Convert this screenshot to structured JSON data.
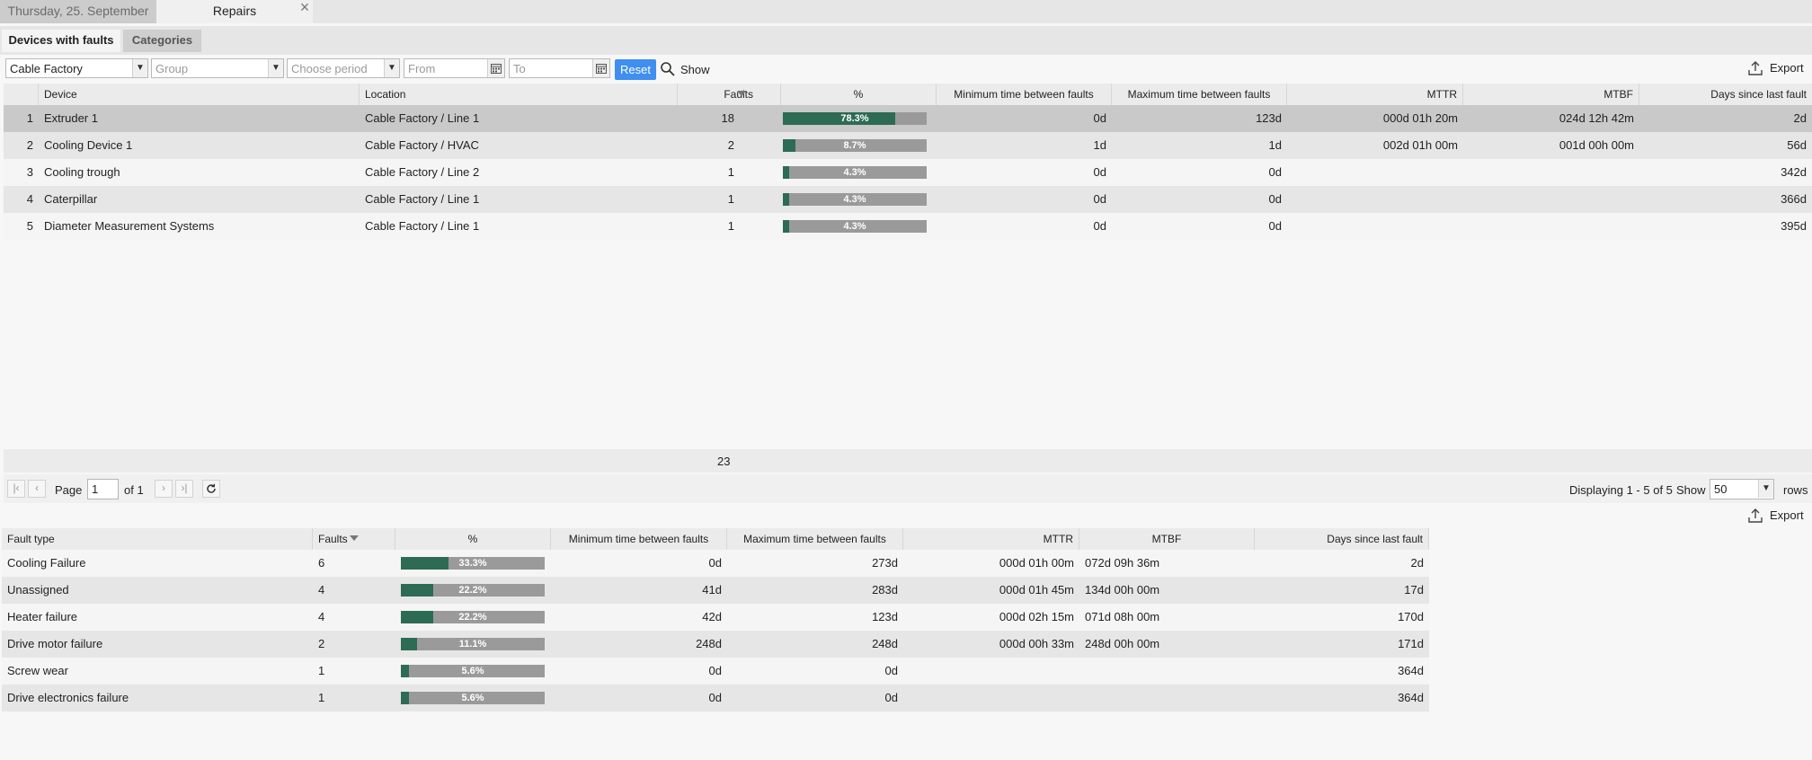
{
  "tabs": {
    "date_tab": "Thursday, 25. September",
    "repairs_tab": "Repairs",
    "close_symbol": "×"
  },
  "subtabs": {
    "devices": "Devices with faults",
    "categories": "Categories"
  },
  "filters": {
    "factory_value": "Cable Factory",
    "group_placeholder": "Group",
    "period_placeholder": "Choose period",
    "from_placeholder": "From",
    "to_placeholder": "To",
    "reset_label": "Reset",
    "show_label": "Show",
    "export_label": "Export"
  },
  "devices_grid": {
    "headers": {
      "device": "Device",
      "location": "Location",
      "faults": "Faults",
      "percent": "%",
      "min_time": "Minimum time between faults",
      "max_time": "Maximum time between faults",
      "mttr": "MTTR",
      "mtbf": "MTBF",
      "days_since": "Days since last fault"
    },
    "rows": [
      {
        "num": "1",
        "device": "Extruder 1",
        "location": "Cable Factory / Line 1",
        "faults": "18",
        "pct": 78.3,
        "pct_label": "78.3%",
        "min": "0d",
        "max": "123d",
        "mttr": "000d 01h 20m",
        "mtbf": "024d 12h 42m",
        "days": "2d"
      },
      {
        "num": "2",
        "device": "Cooling Device 1",
        "location": "Cable Factory / HVAC",
        "faults": "2",
        "pct": 8.7,
        "pct_label": "8.7%",
        "min": "1d",
        "max": "1d",
        "mttr": "002d 01h 00m",
        "mtbf": "001d 00h 00m",
        "days": "56d"
      },
      {
        "num": "3",
        "device": "Cooling trough",
        "location": "Cable Factory / Line 2",
        "faults": "1",
        "pct": 4.3,
        "pct_label": "4.3%",
        "min": "0d",
        "max": "0d",
        "mttr": "",
        "mtbf": "",
        "days": "342d"
      },
      {
        "num": "4",
        "device": "Caterpillar",
        "location": "Cable Factory / Line 1",
        "faults": "1",
        "pct": 4.3,
        "pct_label": "4.3%",
        "min": "0d",
        "max": "0d",
        "mttr": "",
        "mtbf": "",
        "days": "366d"
      },
      {
        "num": "5",
        "device": "Diameter Measurement Systems",
        "location": "Cable Factory / Line 1",
        "faults": "1",
        "pct": 4.3,
        "pct_label": "4.3%",
        "min": "0d",
        "max": "0d",
        "mttr": "",
        "mtbf": "",
        "days": "395d"
      }
    ],
    "summary_total": "23"
  },
  "pager": {
    "page_label": "Page",
    "page_value": "1",
    "of_label": "of 1",
    "displaying": "Displaying 1 - 5 of 5",
    "show_label": "Show",
    "rows_value": "50",
    "rows_label": "rows"
  },
  "categories_grid": {
    "export_label": "Export",
    "headers": {
      "fault_type": "Fault type",
      "faults": "Faults",
      "percent": "%",
      "min_time": "Minimum time between faults",
      "max_time": "Maximum time between faults",
      "mttr": "MTTR",
      "mtbf": "MTBF",
      "days_since": "Days since last fault"
    },
    "rows": [
      {
        "type": "Cooling Failure",
        "faults": "6",
        "pct": 33.3,
        "pct_label": "33.3%",
        "min": "0d",
        "max": "273d",
        "mttr": "000d 01h 00m",
        "mtbf": "072d 09h 36m",
        "days": "2d"
      },
      {
        "type": "Unassigned",
        "faults": "4",
        "pct": 22.2,
        "pct_label": "22.2%",
        "min": "41d",
        "max": "283d",
        "mttr": "000d 01h 45m",
        "mtbf": "134d 00h 00m",
        "days": "17d"
      },
      {
        "type": "Heater failure",
        "faults": "4",
        "pct": 22.2,
        "pct_label": "22.2%",
        "min": "42d",
        "max": "123d",
        "mttr": "000d 02h 15m",
        "mtbf": "071d 08h 00m",
        "days": "170d"
      },
      {
        "type": "Drive motor failure",
        "faults": "2",
        "pct": 11.1,
        "pct_label": "11.1%",
        "min": "248d",
        "max": "248d",
        "mttr": "000d 00h 33m",
        "mtbf": "248d 00h 00m",
        "days": "171d"
      },
      {
        "type": "Screw wear",
        "faults": "1",
        "pct": 5.6,
        "pct_label": "5.6%",
        "min": "0d",
        "max": "0d",
        "mttr": "",
        "mtbf": "",
        "days": "364d"
      },
      {
        "type": "Drive electronics failure",
        "faults": "1",
        "pct": 5.6,
        "pct_label": "5.6%",
        "min": "0d",
        "max": "0d",
        "mttr": "",
        "mtbf": "",
        "days": "364d"
      }
    ]
  },
  "colors": {
    "bar_fill": "#2d6b55",
    "bar_track": "#9a9a9a",
    "reset_button": "#3f8ef0"
  }
}
